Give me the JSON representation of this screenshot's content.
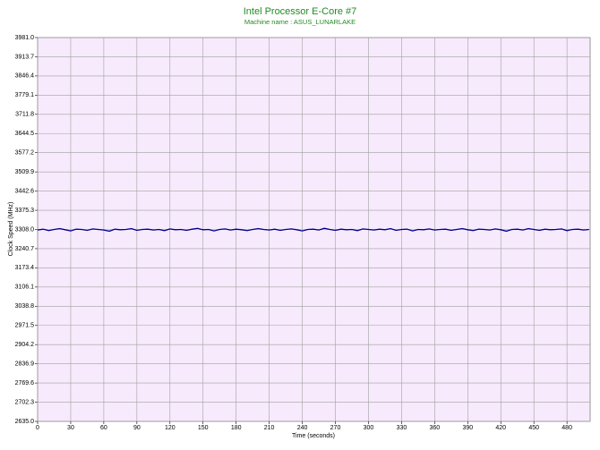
{
  "chart_data": {
    "type": "line",
    "title": "Intel Processor E-Core #7",
    "subtitle": "Machine name : ASUS_LUNARLAKE",
    "xlabel": "Time (seconds)",
    "ylabel": "Clock Speed (MHz)",
    "color": "#00008b",
    "grid": true,
    "xlim": [
      0,
      501
    ],
    "xticks": [
      0,
      30,
      60,
      90,
      120,
      150,
      180,
      210,
      240,
      270,
      300,
      330,
      360,
      390,
      420,
      450,
      480
    ],
    "ylim": [
      2635.0,
      3981.0
    ],
    "yticks": [
      {
        "value": 2635.0,
        "label": "2635.0"
      },
      2702.3,
      2769.6,
      2836.9,
      2904.2,
      2971.5,
      3038.8,
      3106.1,
      3173.4,
      3240.7,
      {
        "value": 3308.0,
        "label": "3308.0"
      },
      3375.3,
      3442.6,
      3509.9,
      3577.2,
      3644.5,
      3711.8,
      3779.1,
      3846.4,
      3913.7,
      {
        "value": 3981.0,
        "label": "3981.0"
      }
    ],
    "x": [
      0,
      5,
      10,
      15,
      20,
      25,
      30,
      35,
      40,
      45,
      50,
      55,
      60,
      65,
      70,
      75,
      80,
      85,
      90,
      95,
      100,
      105,
      110,
      115,
      120,
      125,
      130,
      135,
      140,
      145,
      150,
      155,
      160,
      165,
      170,
      175,
      180,
      185,
      190,
      195,
      200,
      205,
      210,
      215,
      220,
      225,
      230,
      235,
      240,
      245,
      250,
      255,
      260,
      265,
      270,
      275,
      280,
      285,
      290,
      295,
      300,
      305,
      310,
      315,
      320,
      325,
      330,
      335,
      340,
      345,
      350,
      355,
      360,
      365,
      370,
      375,
      380,
      385,
      390,
      395,
      400,
      405,
      410,
      415,
      420,
      425,
      430,
      435,
      440,
      445,
      450,
      455,
      460,
      465,
      470,
      475,
      480,
      485,
      490,
      495,
      500
    ],
    "values": [
      3306,
      3309,
      3304,
      3308,
      3311,
      3307,
      3303,
      3309,
      3308,
      3305,
      3310,
      3308,
      3306,
      3302,
      3309,
      3307,
      3308,
      3311,
      3305,
      3308,
      3309,
      3306,
      3308,
      3304,
      3310,
      3307,
      3308,
      3305,
      3309,
      3312,
      3307,
      3308,
      3303,
      3308,
      3310,
      3306,
      3309,
      3307,
      3304,
      3308,
      3311,
      3308,
      3306,
      3309,
      3305,
      3308,
      3310,
      3307,
      3303,
      3308,
      3309,
      3306,
      3312,
      3308,
      3305,
      3309,
      3307,
      3308,
      3304,
      3310,
      3308,
      3306,
      3309,
      3307,
      3311,
      3305,
      3308,
      3309,
      3303,
      3308,
      3307,
      3310,
      3306,
      3308,
      3309,
      3305,
      3308,
      3311,
      3307,
      3304,
      3309,
      3308,
      3306,
      3310,
      3307,
      3302,
      3308,
      3309,
      3306,
      3311,
      3308,
      3305,
      3309,
      3307,
      3308,
      3310,
      3304,
      3308,
      3309,
      3306,
      3308
    ]
  }
}
